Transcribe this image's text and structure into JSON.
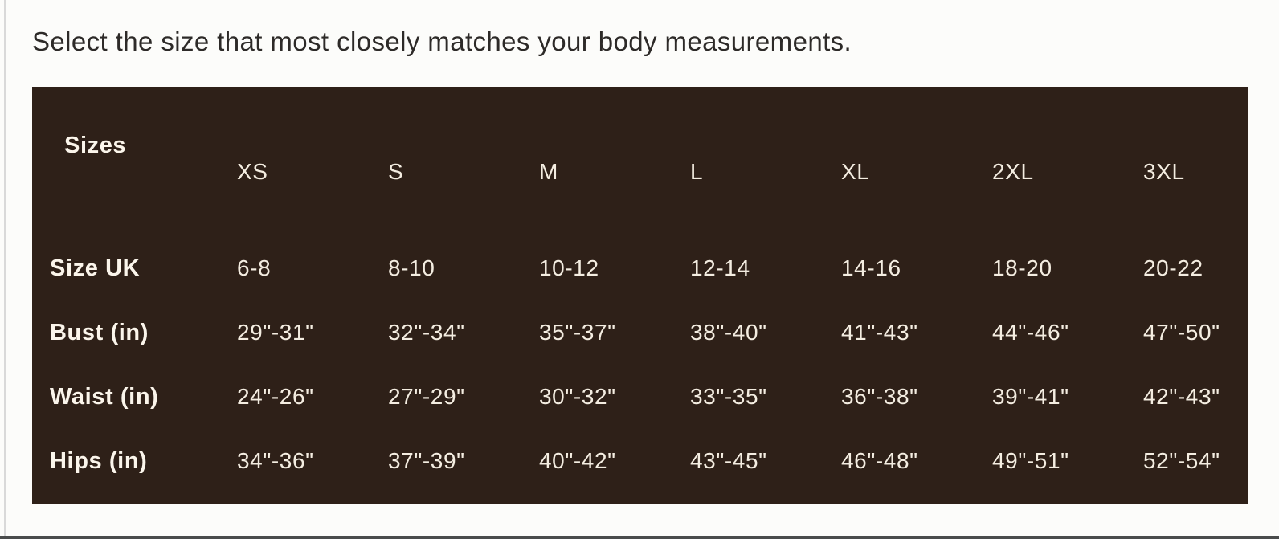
{
  "page": {
    "instruction": "Select the size that most closely matches your body measurements.",
    "theme": {
      "page_bg": "#fcfcfa",
      "heading_text": "#2d2a28",
      "table_bg": "#2e2018",
      "table_text": "#f4ede1",
      "table_label_text": "#fbf5eb",
      "left_rule": "#d9d9d9",
      "bottom_rule": "#4a4c4c"
    }
  },
  "size_chart": {
    "corner_label": "Sizes",
    "columns": [
      "XS",
      "S",
      "M",
      "L",
      "XL",
      "2XL",
      "3XL"
    ],
    "rows": [
      {
        "label": "Size UK",
        "values": [
          "6-8",
          "8-10",
          "10-12",
          "12-14",
          "14-16",
          "18-20",
          "20-22"
        ]
      },
      {
        "label": "Bust (in)",
        "values": [
          "29\"-31\"",
          "32\"-34\"",
          "35\"-37\"",
          "38\"-40\"",
          "41\"-43\"",
          "44\"-46\"",
          "47\"-50\""
        ]
      },
      {
        "label": "Waist (in)",
        "values": [
          "24\"-26\"",
          "27\"-29\"",
          "30\"-32\"",
          "33\"-35\"",
          "36\"-38\"",
          "39\"-41\"",
          "42\"-43\""
        ]
      },
      {
        "label": "Hips (in)",
        "values": [
          "34\"-36\"",
          "37\"-39\"",
          "40\"-42\"",
          "43\"-45\"",
          "46\"-48\"",
          "49\"-51\"",
          "52\"-54\""
        ]
      }
    ]
  }
}
